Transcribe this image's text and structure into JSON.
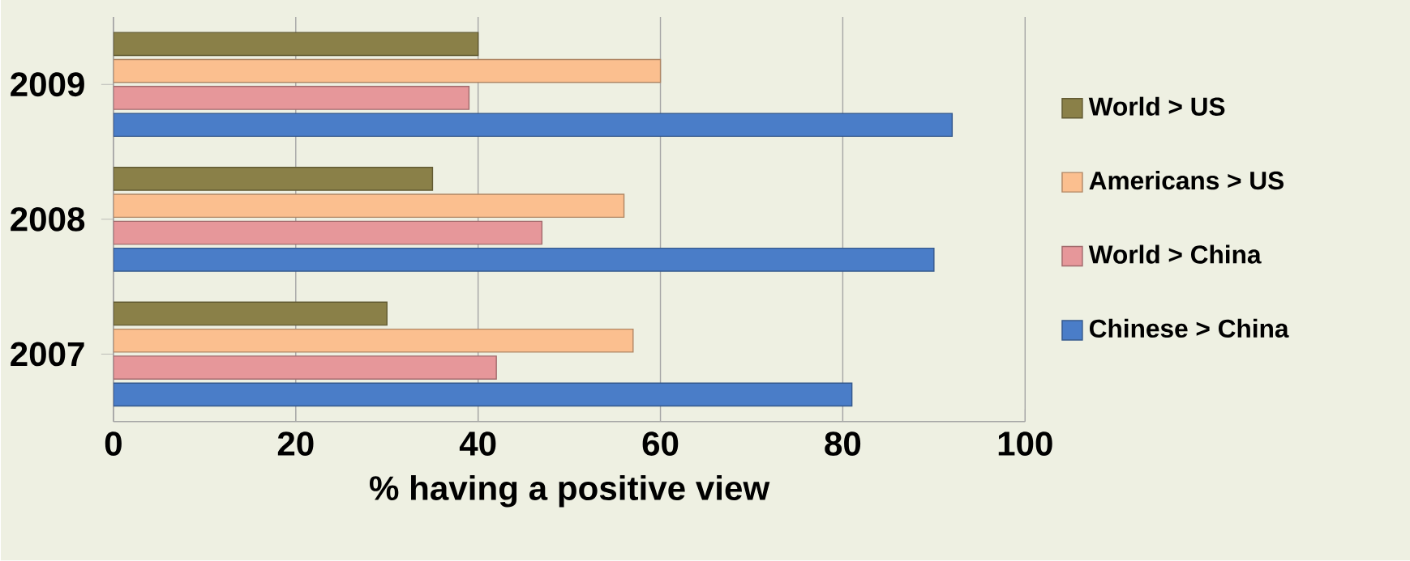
{
  "chart_data": {
    "type": "bar",
    "orientation": "horizontal",
    "xlabel": "% having a positive view",
    "categories": [
      "2009",
      "2008",
      "2007"
    ],
    "series": [
      {
        "name": "World > US",
        "color": "#8a8048",
        "values": [
          40,
          35,
          30
        ]
      },
      {
        "name": "Americans > US",
        "color": "#fbbf8f",
        "values": [
          60,
          56,
          57
        ]
      },
      {
        "name": "World > China",
        "color": "#e6979a",
        "values": [
          39,
          47,
          42
        ]
      },
      {
        "name": "Chinese > China",
        "color": "#4a7dc8",
        "values": [
          92,
          90,
          81
        ]
      }
    ],
    "xlim": [
      0,
      100
    ],
    "xticks": [
      0,
      20,
      40,
      60,
      80,
      100
    ],
    "grid": "x",
    "legend": "right"
  }
}
